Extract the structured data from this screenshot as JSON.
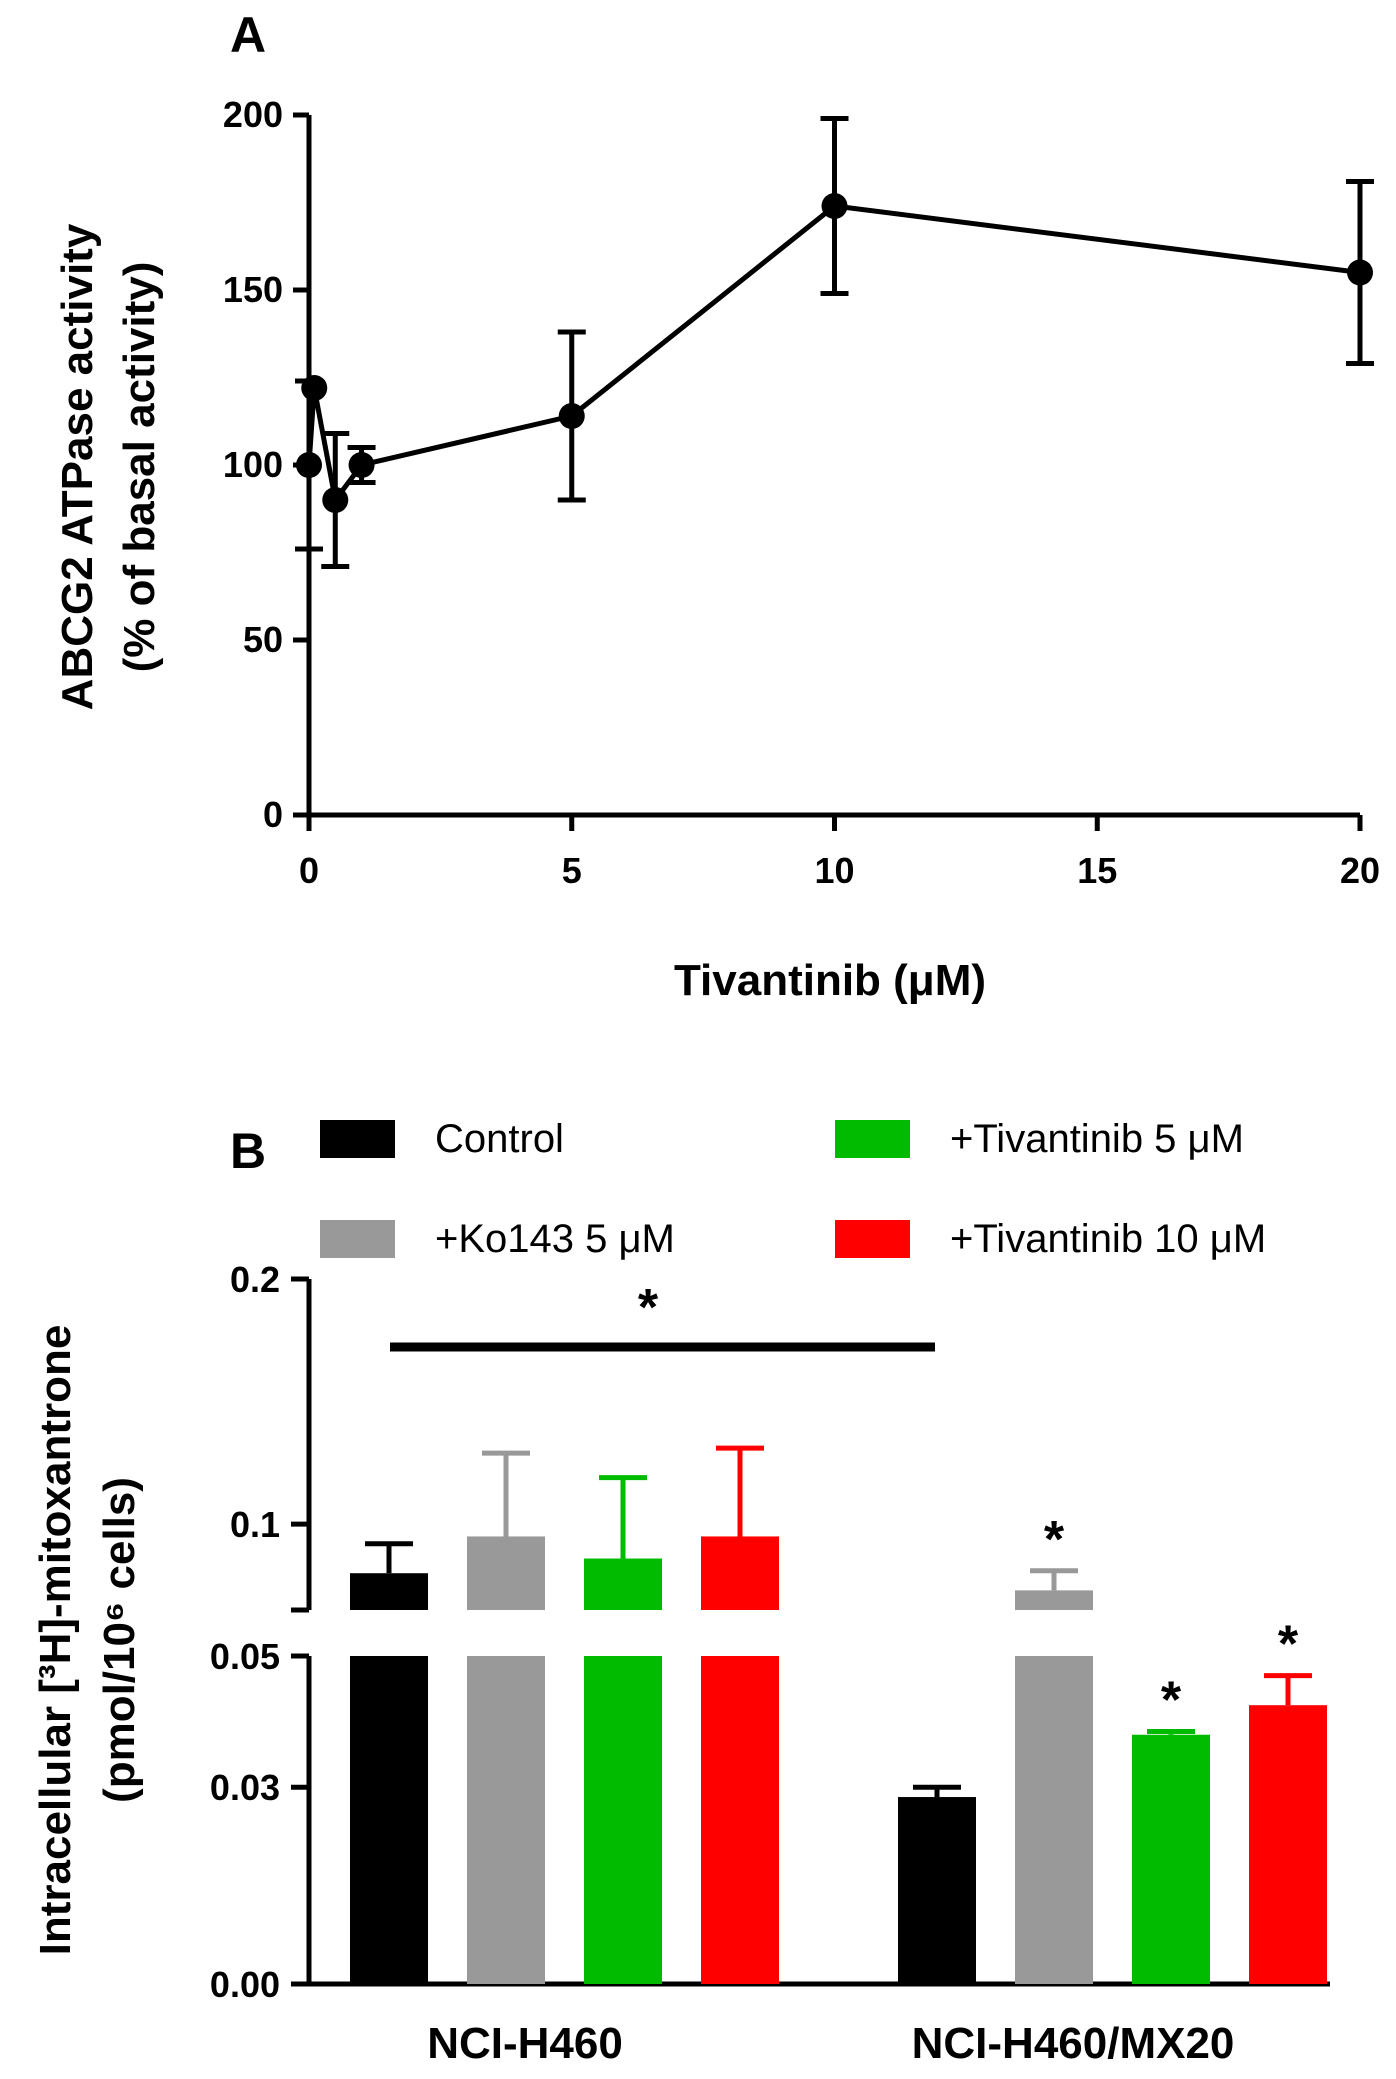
{
  "chart_data": [
    {
      "type": "line",
      "panel_label": "A",
      "xlabel": "Tivantinib (μM)",
      "ylabel_line1": "ABCG2 ATPase activity",
      "ylabel_line2": "(% of basal activity)",
      "xlim": [
        0,
        20
      ],
      "ylim": [
        0,
        200
      ],
      "xticks": [
        "0",
        "5",
        "10",
        "15",
        "20"
      ],
      "yticks": [
        "0",
        "50",
        "100",
        "150",
        "200"
      ],
      "points": [
        {
          "x": 0,
          "y": 100,
          "err": 24
        },
        {
          "x": 0.1,
          "y": 122,
          "err": 0
        },
        {
          "x": 0.5,
          "y": 90,
          "err": 19
        },
        {
          "x": 1,
          "y": 100,
          "err": 5
        },
        {
          "x": 5,
          "y": 114,
          "err": 24
        },
        {
          "x": 10,
          "y": 174,
          "err": 25
        },
        {
          "x": 20,
          "y": 155,
          "err": 26
        }
      ]
    },
    {
      "type": "bar",
      "panel_label": "B",
      "ylabel_line1": "Intracellular [³H]-mitoxantrone",
      "ylabel_line2": "(pmol/10⁶ cells)",
      "categories": [
        "NCI-H460",
        "NCI-H460/MX20"
      ],
      "y_axis_broken": true,
      "lower_ylim": [
        0,
        0.05
      ],
      "upper_ylim": [
        0.065,
        0.2
      ],
      "yticks": [
        "0.00",
        "0.03",
        "0.05",
        "0.1",
        "0.2"
      ],
      "series": [
        {
          "name": "Control",
          "color": "#000000",
          "values": [
            0.08,
            0.0285
          ],
          "errors": [
            0.012,
            0.0015
          ],
          "stars": [
            "",
            ""
          ]
        },
        {
          "name": "+Ko143  5 μM",
          "color": "#999999",
          "values": [
            0.095,
            0.073
          ],
          "errors": [
            0.034,
            0.008
          ],
          "stars": [
            "",
            "*"
          ]
        },
        {
          "name": "+Tivantinib 5 μM",
          "color": "#00bb00",
          "values": [
            0.086,
            0.038
          ],
          "errors": [
            0.033,
            0.0005
          ],
          "stars": [
            "",
            "*"
          ]
        },
        {
          "name": "+Tivantinib 10 μM",
          "color": "#ff0000",
          "values": [
            0.095,
            0.0425
          ],
          "errors": [
            0.036,
            0.0045
          ],
          "stars": [
            "",
            "*"
          ]
        }
      ],
      "significance_bar": {
        "label": "*",
        "span": "NCI-H460 vs NCI-H460/MX20"
      }
    }
  ]
}
